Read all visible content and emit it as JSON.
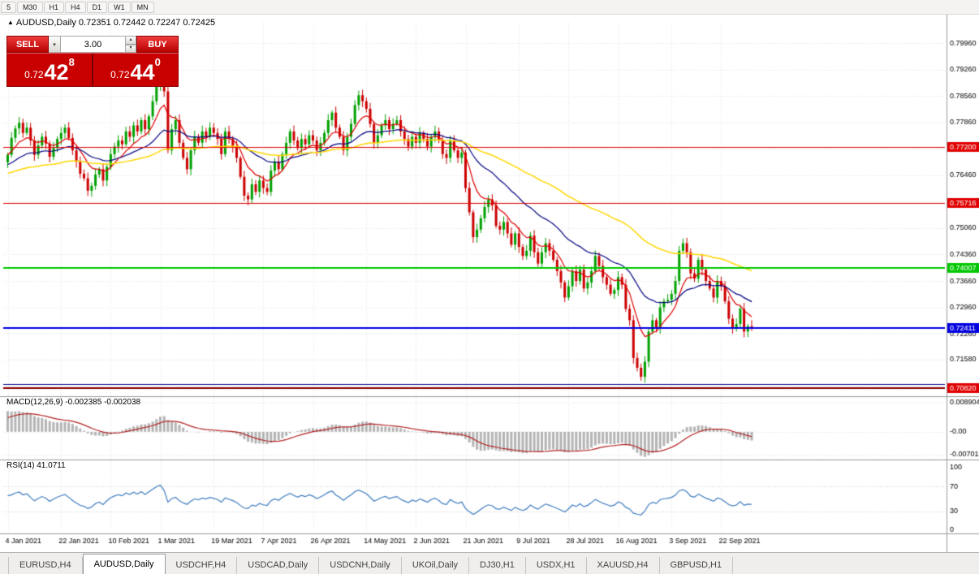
{
  "toolbar": {
    "timeframes": [
      "5",
      "M30",
      "H1",
      "H4",
      "D1",
      "W1",
      "MN"
    ]
  },
  "chart": {
    "title": "AUDUSD,Daily 0.72351 0.72442 0.72247 0.72425",
    "macd_label": "MACD(12,26,9) -0.002385 -0.002038",
    "rsi_label": "RSI(14) 41.0711"
  },
  "trade_panel": {
    "sell_label": "SELL",
    "buy_label": "BUY",
    "volume": "3.00",
    "sell_price": {
      "prefix": "0.72",
      "big": "42",
      "sup": "8"
    },
    "buy_price": {
      "prefix": "0.72",
      "big": "44",
      "sup": "0"
    }
  },
  "tabs": {
    "items": [
      "EURUSD,H4",
      "AUDUSD,Daily",
      "USDCHF,H4",
      "USDCAD,Daily",
      "USDCNH,Daily",
      "UKOil,Daily",
      "DJ30,H1",
      "USDX,H1",
      "XAUUSD,H4",
      "GBPUSD,H1"
    ],
    "active": "AUDUSD,Daily"
  },
  "chart_data": {
    "type": "candlestick",
    "symbol": "AUDUSD",
    "timeframe": "Daily",
    "up_color": "#00a000",
    "down_color": "#cc0000",
    "first_open": 0.768,
    "close": [
      0.77,
      0.7745,
      0.777,
      0.7785,
      0.7758,
      0.7772,
      0.7738,
      0.77,
      0.7725,
      0.7748,
      0.773,
      0.7695,
      0.7718,
      0.7742,
      0.7758,
      0.7772,
      0.7745,
      0.7712,
      0.7682,
      0.765,
      0.7638,
      0.7605,
      0.7618,
      0.7648,
      0.7662,
      0.7632,
      0.7668,
      0.7702,
      0.7722,
      0.7738,
      0.7728,
      0.7762,
      0.7748,
      0.7778,
      0.7762,
      0.7792,
      0.7768,
      0.7802,
      0.7842,
      0.7885,
      0.7916,
      0.7868,
      0.7712,
      0.7768,
      0.7792,
      0.7732,
      0.7692,
      0.7662,
      0.7712,
      0.7748,
      0.7732,
      0.7762,
      0.7748,
      0.7772,
      0.7758,
      0.7742,
      0.7702,
      0.7762,
      0.7742,
      0.7722,
      0.7692,
      0.7642,
      0.7592,
      0.7582,
      0.7622,
      0.7602,
      0.7632,
      0.7612,
      0.7602,
      0.7658,
      0.7682,
      0.7662,
      0.7702,
      0.7732,
      0.7762,
      0.7738,
      0.7718,
      0.7742,
      0.7728,
      0.7752,
      0.7738,
      0.7712,
      0.7732,
      0.7758,
      0.7792,
      0.7812,
      0.7772,
      0.7748,
      0.7712,
      0.7748,
      0.7782,
      0.7832,
      0.7858,
      0.7842,
      0.7822,
      0.7782,
      0.7732,
      0.7752,
      0.7778,
      0.7792,
      0.7768,
      0.7782,
      0.7792,
      0.7762,
      0.7742,
      0.7722,
      0.7748,
      0.7732,
      0.7758,
      0.7742,
      0.7722,
      0.7748,
      0.7762,
      0.7738,
      0.7702,
      0.7692,
      0.7738,
      0.7712,
      0.7692,
      0.7706,
      0.7612,
      0.7548,
      0.7482,
      0.7502,
      0.7532,
      0.7562,
      0.7582,
      0.7566,
      0.7512,
      0.7502,
      0.7522,
      0.7492,
      0.7462,
      0.7492,
      0.7456,
      0.7432,
      0.7446,
      0.7486,
      0.7442,
      0.7412,
      0.7442,
      0.7466,
      0.7446,
      0.7422,
      0.7392,
      0.7362,
      0.7322,
      0.7352,
      0.7392,
      0.7366,
      0.7396,
      0.7346,
      0.7362,
      0.7392,
      0.7432,
      0.7406,
      0.7376,
      0.7356,
      0.7332,
      0.7342,
      0.7376,
      0.7356,
      0.7292,
      0.7262,
      0.7162,
      0.7136,
      0.7112,
      0.7152,
      0.7232,
      0.7262,
      0.7242,
      0.7296,
      0.7312,
      0.7316,
      0.7332,
      0.7366,
      0.7446,
      0.7466,
      0.7442,
      0.7386,
      0.7372,
      0.7422,
      0.7396,
      0.7366,
      0.7346,
      0.7322,
      0.7366,
      0.7352,
      0.7312,
      0.7266,
      0.7242,
      0.7252,
      0.7292,
      0.7232,
      0.7246,
      0.7242
    ],
    "y_range": {
      "max": 0.805,
      "min": 0.7065
    },
    "y_ticks": [
      {
        "v": 0.7996,
        "label": "0.79960"
      },
      {
        "v": 0.7926,
        "label": "0.79260"
      },
      {
        "v": 0.7856,
        "label": "0.78560"
      },
      {
        "v": 0.7786,
        "label": "0.77860"
      },
      {
        "v": 0.7716,
        "label": "0.77160"
      },
      {
        "v": 0.7646,
        "label": "0.76460"
      },
      {
        "v": 0.7576,
        "label": "0.75760"
      },
      {
        "v": 0.7506,
        "label": "0.75060"
      },
      {
        "v": 0.7436,
        "label": "0.74360"
      },
      {
        "v": 0.7366,
        "label": "0.73660"
      },
      {
        "v": 0.7296,
        "label": "0.72960"
      },
      {
        "v": 0.7226,
        "label": "0.72260"
      },
      {
        "v": 0.7158,
        "label": "0.71580"
      },
      {
        "v": 0.7086,
        "label": "0.70860"
      }
    ],
    "levels": [
      {
        "price": 0.772,
        "label": "0.77200",
        "color": "#e00000",
        "width": 1,
        "badge": true
      },
      {
        "price": 0.75716,
        "label": "0.75716",
        "color": "#e00000",
        "width": 1,
        "badge": true
      },
      {
        "price": 0.74007,
        "label": "0.74007",
        "color": "#00c800",
        "width": 2,
        "badge": true
      },
      {
        "price": 0.72411,
        "label": "0.72411",
        "color": "#0000e0",
        "width": 2,
        "badge": true
      },
      {
        "price": 0.7092,
        "label": "",
        "color": "#000090",
        "width": 1,
        "badge": false
      },
      {
        "price": 0.7082,
        "label": "0.70820",
        "color": "#8b0000",
        "width": 2,
        "badge": true,
        "badge_color": "#e00000"
      }
    ],
    "x_ticks": [
      {
        "i": 0,
        "label": "4 Jan 2021"
      },
      {
        "i": 14,
        "label": "22 Jan 2021"
      },
      {
        "i": 27,
        "label": "10 Feb 2021"
      },
      {
        "i": 40,
        "label": "1 Mar 2021"
      },
      {
        "i": 54,
        "label": "19 Mar 2021"
      },
      {
        "i": 67,
        "label": "7 Apr 2021"
      },
      {
        "i": 80,
        "label": "26 Apr 2021"
      },
      {
        "i": 94,
        "label": "14 May 2021"
      },
      {
        "i": 107,
        "label": "2 Jun 2021"
      },
      {
        "i": 120,
        "label": "21 Jun 2021"
      },
      {
        "i": 134,
        "label": "9 Jul 2021"
      },
      {
        "i": 147,
        "label": "28 Jul 2021"
      },
      {
        "i": 160,
        "label": "16 Aug 2021"
      },
      {
        "i": 174,
        "label": "3 Sep 2021"
      },
      {
        "i": 187,
        "label": "22 Sep 2021"
      }
    ],
    "ma": [
      {
        "period": 9,
        "color": "#e00000",
        "width": 1.2,
        "seed": 0.77
      },
      {
        "period": 27,
        "color": "#000080",
        "width": 1.2,
        "seed": 0.7672
      },
      {
        "period": 75,
        "color": "#ffd700",
        "width": 1.5,
        "seed": 0.765
      }
    ],
    "macd": {
      "params": "12,26,9",
      "hist_color": "#b4b4b4",
      "signal_color": "#b22222",
      "range": {
        "max": 0.008904,
        "min": -0.00701
      },
      "ticks": [
        {
          "v": 0.008904,
          "label": "0.008904"
        },
        {
          "v": 0.0,
          "label": "-0.00"
        },
        {
          "v": -0.00701,
          "label": "-0.00701"
        }
      ]
    },
    "rsi": {
      "period": 14,
      "color": "#3e7cbf",
      "levels": [
        70,
        30
      ],
      "ticks": [
        {
          "v": 100,
          "label": "100"
        },
        {
          "v": 70,
          "label": "70"
        },
        {
          "v": 30,
          "label": "30"
        },
        {
          "v": 0,
          "label": "0"
        }
      ]
    }
  }
}
